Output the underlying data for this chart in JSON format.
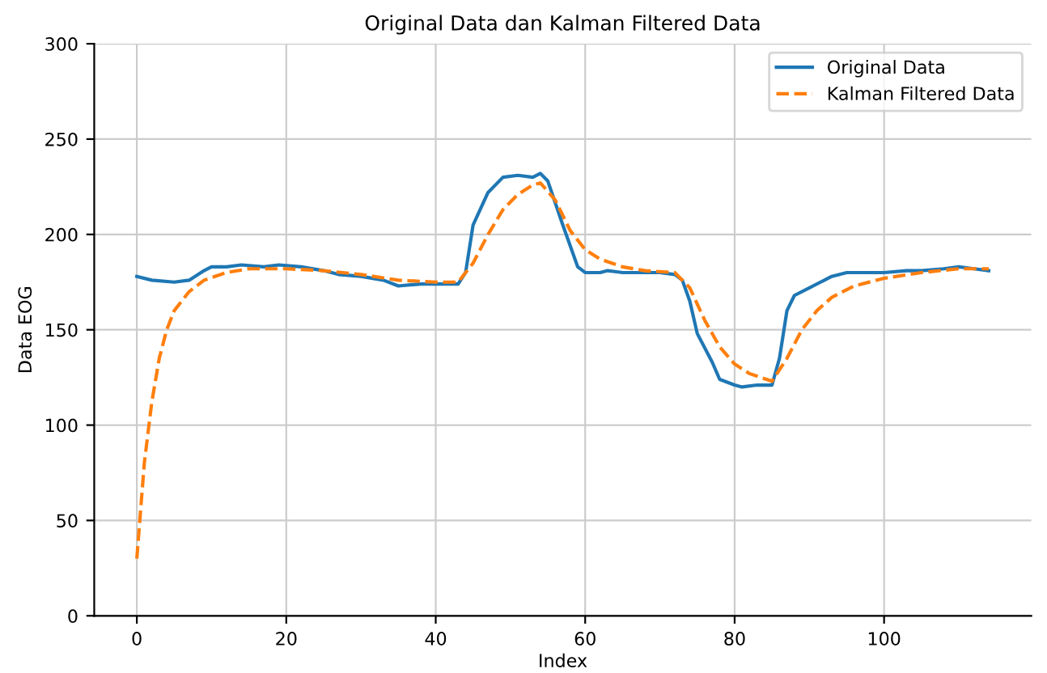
{
  "chart_data": {
    "type": "line",
    "title": "Original Data dan Kalman Filtered Data",
    "xlabel": "Index",
    "ylabel": "Data EOG",
    "xlim": [
      -5.7,
      119.7
    ],
    "xticks": [
      0,
      20,
      40,
      60,
      80,
      100
    ],
    "ylim": [
      0,
      300
    ],
    "yticks": [
      0,
      50,
      100,
      150,
      200,
      250,
      300
    ],
    "grid": true,
    "legend": "top right",
    "series": [
      {
        "name": "Original Data",
        "color": "#1f77b4",
        "line_style": "solid",
        "x": [
          0,
          2,
          5,
          7,
          9,
          10,
          12,
          14,
          17,
          19,
          22,
          25,
          27,
          30,
          33,
          35,
          38,
          40,
          43,
          44,
          45,
          47,
          49,
          51,
          53,
          54,
          55,
          57,
          59,
          60,
          62,
          63,
          65,
          68,
          70,
          72,
          73,
          74,
          75,
          77,
          78,
          80,
          81,
          83,
          85,
          86,
          87,
          88,
          90,
          93,
          95,
          97,
          100,
          103,
          105,
          108,
          110,
          112,
          114
        ],
        "values": [
          178,
          176,
          175,
          176,
          181,
          183,
          183,
          184,
          183,
          184,
          183,
          181,
          179,
          178,
          176,
          173,
          174,
          174,
          174,
          180,
          205,
          222,
          230,
          231,
          230,
          232,
          228,
          205,
          183,
          180,
          180,
          181,
          180,
          180,
          180,
          179,
          176,
          165,
          148,
          133,
          124,
          121,
          120,
          121,
          121,
          135,
          160,
          168,
          172,
          178,
          180,
          180,
          180,
          181,
          181,
          182,
          183,
          182,
          181
        ]
      },
      {
        "name": "Kalman Filtered Data",
        "color": "#ff7f0e",
        "line_style": "dashed",
        "x": [
          0,
          1,
          2,
          3,
          4,
          5,
          7,
          9,
          12,
          15,
          20,
          25,
          30,
          35,
          40,
          43,
          45,
          47,
          49,
          51,
          53,
          54,
          56,
          58,
          60,
          62,
          65,
          68,
          72,
          74,
          76,
          78,
          80,
          82,
          85,
          87,
          89,
          91,
          93,
          96,
          100,
          105,
          110,
          114
        ],
        "values": [
          30,
          80,
          112,
          135,
          150,
          160,
          170,
          176,
          180,
          182,
          182,
          181,
          179,
          176,
          175,
          175,
          185,
          200,
          213,
          221,
          226,
          227,
          218,
          202,
          192,
          187,
          183,
          181,
          180,
          172,
          155,
          141,
          132,
          127,
          123,
          135,
          150,
          160,
          167,
          173,
          177,
          180,
          182,
          182
        ]
      }
    ]
  }
}
